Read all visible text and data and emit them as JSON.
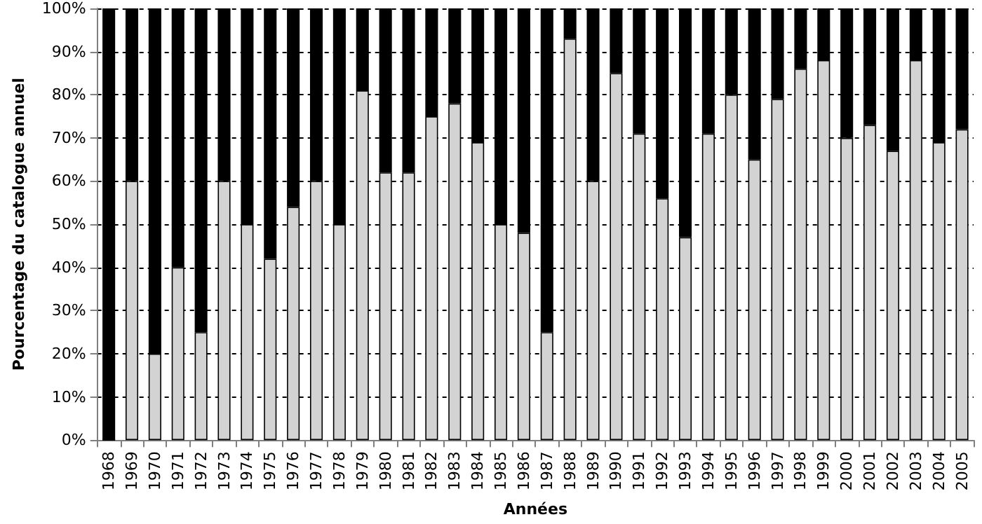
{
  "chart_data": {
    "type": "bar",
    "stacked": true,
    "xlabel": "Années",
    "ylabel": "Pourcentage du catalogue annuel",
    "categories": [
      "1968",
      "1969",
      "1970",
      "1971",
      "1972",
      "1973",
      "1974",
      "1975",
      "1976",
      "1977",
      "1978",
      "1979",
      "1980",
      "1981",
      "1982",
      "1983",
      "1984",
      "1985",
      "1986",
      "1987",
      "1988",
      "1989",
      "1990",
      "1991",
      "1992",
      "1993",
      "1994",
      "1995",
      "1996",
      "1997",
      "1998",
      "1999",
      "2000",
      "2001",
      "2002",
      "2003",
      "2004",
      "2005"
    ],
    "series": [
      {
        "color": "#d3d3d3",
        "values": [
          0,
          60,
          20,
          40,
          25,
          60,
          50,
          42,
          54,
          60,
          50,
          81,
          62,
          62,
          75,
          78,
          69,
          50,
          48,
          25,
          93,
          60,
          85,
          71,
          56,
          47,
          71,
          80,
          65,
          79,
          86,
          88,
          70,
          73,
          67,
          88,
          69,
          72
        ]
      },
      {
        "color": "#000000",
        "values": [
          100,
          40,
          80,
          60,
          75,
          40,
          50,
          58,
          46,
          40,
          50,
          19,
          38,
          38,
          25,
          22,
          31,
          50,
          52,
          75,
          7,
          40,
          15,
          29,
          44,
          53,
          29,
          20,
          35,
          21,
          14,
          12,
          30,
          27,
          33,
          12,
          31,
          28
        ]
      }
    ],
    "ylim": [
      0,
      100
    ],
    "yticks": [
      {
        "value": 0,
        "label": "0%"
      },
      {
        "value": 10,
        "label": "10%"
      },
      {
        "value": 20,
        "label": "20%"
      },
      {
        "value": 30,
        "label": "30%"
      },
      {
        "value": 40,
        "label": "40%"
      },
      {
        "value": 50,
        "label": "50%"
      },
      {
        "value": 60,
        "label": "60%"
      },
      {
        "value": 70,
        "label": "70%"
      },
      {
        "value": 80,
        "label": "80%"
      },
      {
        "value": 90,
        "label": "90%"
      },
      {
        "value": 100,
        "label": "100%"
      }
    ],
    "grid": "y"
  }
}
